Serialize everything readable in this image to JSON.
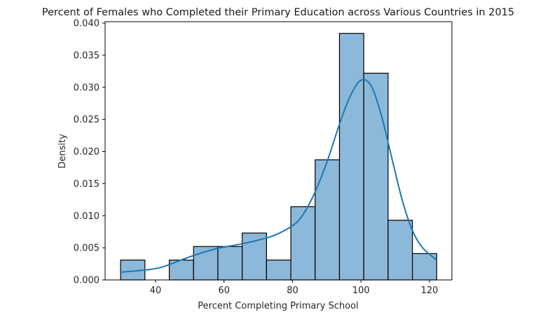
{
  "chart_data": {
    "type": "bar",
    "subtype": "histogram_with_kde",
    "title": "Percent of Females who Completed their Primary Education across Various Countries in 2015",
    "xlabel": "Percent Completing Primary School",
    "ylabel": "Density",
    "xlim": [
      26,
      126.5
    ],
    "ylim": [
      0.0,
      0.0402
    ],
    "xticks": [
      40,
      60,
      80,
      100,
      120
    ],
    "xtick_labels": [
      "40",
      "60",
      "80",
      "100",
      "120"
    ],
    "yticks": [
      0.0,
      0.005,
      0.01,
      0.015,
      0.02,
      0.025,
      0.03,
      0.035,
      0.04
    ],
    "ytick_labels": [
      "0.000",
      "0.005",
      "0.010",
      "0.015",
      "0.020",
      "0.025",
      "0.030",
      "0.035",
      "0.040"
    ],
    "grid": false,
    "legend": null,
    "bins": {
      "edges": [
        29.8,
        36.9,
        44.0,
        51.1,
        58.2,
        65.3,
        72.4,
        79.5,
        86.6,
        93.7,
        100.8,
        107.9,
        115.0,
        122.1
      ],
      "density": [
        0.0031,
        0.0,
        0.0031,
        0.0052,
        0.0052,
        0.0073,
        0.0031,
        0.0114,
        0.0187,
        0.0384,
        0.0322,
        0.0093,
        0.0041
      ]
    },
    "kde": {
      "x": [
        29.8,
        34,
        38,
        42,
        46,
        50,
        54,
        58,
        62,
        66,
        70,
        74,
        78,
        82,
        86,
        90,
        94,
        97,
        100,
        103,
        106,
        109,
        112,
        115,
        118,
        122.1
      ],
      "y": [
        0.0012,
        0.0014,
        0.0016,
        0.002,
        0.0028,
        0.0036,
        0.0043,
        0.0049,
        0.0053,
        0.0057,
        0.0062,
        0.0068,
        0.0078,
        0.0094,
        0.013,
        0.0183,
        0.0247,
        0.0288,
        0.0311,
        0.0302,
        0.0255,
        0.019,
        0.0125,
        0.0077,
        0.005,
        0.0031
      ]
    },
    "colors": {
      "bar_fill": "#8cb8d9",
      "bar_edge": "#000000",
      "kde_line": "#1f77b4"
    }
  }
}
